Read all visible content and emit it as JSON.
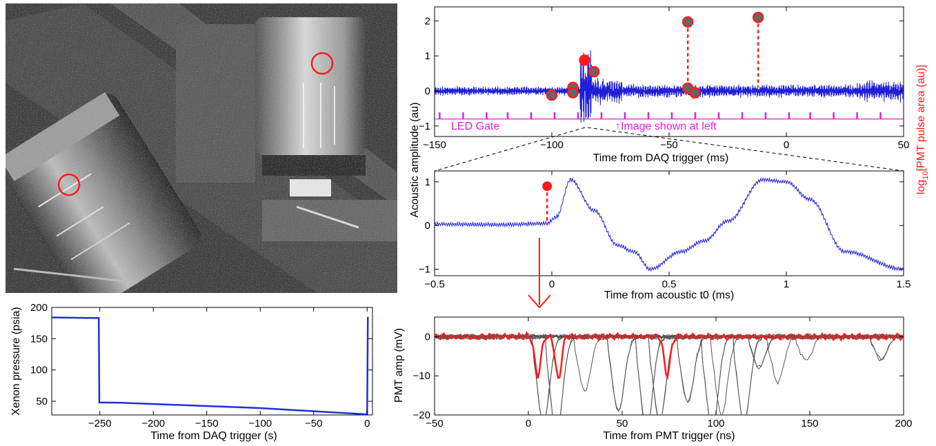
{
  "colors": {
    "acoustic_trace": "#1f1fd6",
    "led_gate": "#e01fe0",
    "pmt_marker": "#ff1a1a",
    "pmt_traces_gray": "#555555",
    "pressure_trace": "#1d2fd8"
  },
  "photo": {
    "description_icon": "bubble-chamber-camera-photo",
    "circles": 2
  },
  "chart_data": [
    {
      "id": "acoustic_full",
      "type": "line",
      "xlabel": "Time from DAQ trigger (ms)",
      "ylabel": "Acoustic amplitude (au)",
      "right_ylabel_main": "log",
      "right_ylabel_sub": "10",
      "right_ylabel_rest": "[PMT pulse area (au)]",
      "xlim": [
        -150,
        50
      ],
      "ylim": [
        -1.3,
        2.4
      ],
      "xticks": [
        "−150",
        "−100",
        "−50",
        "0",
        "50"
      ],
      "yticks": [
        "−1",
        "0",
        "1",
        "2"
      ],
      "annotation_led": "LED Gate",
      "annotation_image": "↑Image shown at left",
      "pmt_pulses": [
        {
          "x": -100,
          "y": -0.12
        },
        {
          "x": -91,
          "y": 0.1
        },
        {
          "x": -91,
          "y": -0.05
        },
        {
          "x": -86,
          "y": 0.88
        },
        {
          "x": -82,
          "y": 0.55
        },
        {
          "x": -42,
          "y": 1.97
        },
        {
          "x": -42,
          "y": 0.08
        },
        {
          "x": -39,
          "y": -0.05
        },
        {
          "x": -12,
          "y": 2.1
        }
      ],
      "led_gate_times": [
        -148,
        -138,
        -128,
        -119,
        -109,
        -99,
        -89,
        -79,
        -69,
        -59,
        -49,
        -39,
        -29,
        -19,
        -9,
        1,
        10,
        20,
        30,
        40
      ],
      "led_gate_level": -0.8
    },
    {
      "id": "acoustic_zoom",
      "type": "line",
      "xlabel": "Time from acoustic t0 (ms)",
      "xlim": [
        -0.5,
        1.5
      ],
      "ylim": [
        -1.15,
        1.25
      ],
      "xticks": [
        "−0.5",
        "0",
        "0.5",
        "1",
        "1.5"
      ],
      "yticks": [
        "−1",
        "0",
        "1"
      ],
      "pmt_pulse": {
        "x": -0.02,
        "y": 0.9
      },
      "trace_keypoints": [
        [
          -0.5,
          0.03
        ],
        [
          -0.2,
          0.02
        ],
        [
          -0.02,
          0.05
        ],
        [
          0.02,
          0.2
        ],
        [
          0.08,
          1.05
        ],
        [
          0.18,
          0.35
        ],
        [
          0.28,
          -0.45
        ],
        [
          0.35,
          -0.6
        ],
        [
          0.42,
          -1.0
        ],
        [
          0.55,
          -0.6
        ],
        [
          0.65,
          -0.35
        ],
        [
          0.75,
          0.1
        ],
        [
          0.9,
          1.05
        ],
        [
          1.0,
          1.0
        ],
        [
          1.1,
          0.6
        ],
        [
          1.25,
          -0.6
        ],
        [
          1.5,
          -1.0
        ]
      ]
    },
    {
      "id": "pressure",
      "type": "line",
      "xlabel": "Time from DAQ trigger (s)",
      "ylabel": "Xenon pressure (psia)",
      "xlim": [
        -295,
        5
      ],
      "ylim": [
        28,
        200
      ],
      "xticks": [
        "−250",
        "−200",
        "−150",
        "−100",
        "−50",
        "0"
      ],
      "yticks": [
        "50",
        "100",
        "150",
        "200"
      ],
      "points": [
        [
          -295,
          184
        ],
        [
          -251,
          183
        ],
        [
          -250.5,
          48
        ],
        [
          -230,
          47.5
        ],
        [
          -100,
          39
        ],
        [
          0,
          29
        ],
        [
          0.7,
          185
        ]
      ]
    },
    {
      "id": "pmt",
      "type": "line",
      "xlabel": "Time from PMT trigger (ns)",
      "ylabel": "PMT amp (mV)",
      "xlim": [
        -50,
        200
      ],
      "ylim": [
        -20,
        5
      ],
      "xticks": [
        "−50",
        "0",
        "50",
        "100",
        "150",
        "200"
      ],
      "yticks": [
        "−20",
        "−10",
        "0"
      ],
      "red_pulses": [
        {
          "t": 5,
          "a": -10
        },
        {
          "t": 16,
          "a": -11
        },
        {
          "t": 74,
          "a": -10
        }
      ]
    }
  ]
}
